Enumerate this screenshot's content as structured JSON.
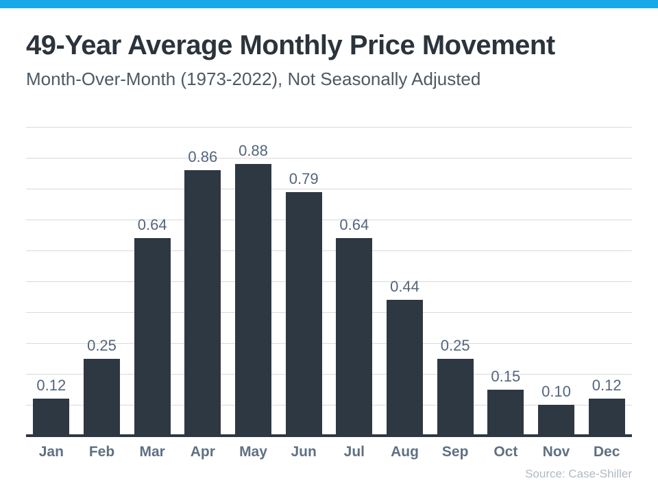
{
  "header": {
    "title": "49-Year Average Monthly Price Movement",
    "subtitle": "Month-Over-Month (1973-2022), Not Seasonally Adjusted"
  },
  "source": {
    "label": "Source: Case-Shiller"
  },
  "colors": {
    "accent_bar": "#18A9E8",
    "background": "#FFFFFF",
    "title_text": "#2B333C",
    "subtitle_text": "#4D5962",
    "bar_fill": "#2E3842",
    "value_label": "#53657A",
    "month_label": "#5E7082",
    "gridline": "#D9D9D9",
    "source_text": "#AFBAC3"
  },
  "chart_data": {
    "type": "bar",
    "title": "49-Year Average Monthly Price Movement",
    "subtitle": "Month-Over-Month (1973-2022), Not Seasonally Adjusted",
    "categories": [
      "Jan",
      "Feb",
      "Mar",
      "Apr",
      "May",
      "Jun",
      "Jul",
      "Aug",
      "Sep",
      "Oct",
      "Nov",
      "Dec"
    ],
    "values": [
      0.12,
      0.25,
      0.64,
      0.86,
      0.88,
      0.79,
      0.64,
      0.44,
      0.25,
      0.15,
      0.1,
      0.12
    ],
    "value_labels": [
      "0.12",
      "0.25",
      "0.64",
      "0.86",
      "0.88",
      "0.79",
      "0.64",
      "0.44",
      "0.25",
      "0.15",
      "0.10",
      "0.12"
    ],
    "xlabel": "",
    "ylabel": "",
    "ylim": [
      0,
      1.0
    ],
    "grid_step": 0.1,
    "grid": true,
    "legend": false,
    "data_labels": true,
    "annotation": "Source: Case-Shiller"
  }
}
